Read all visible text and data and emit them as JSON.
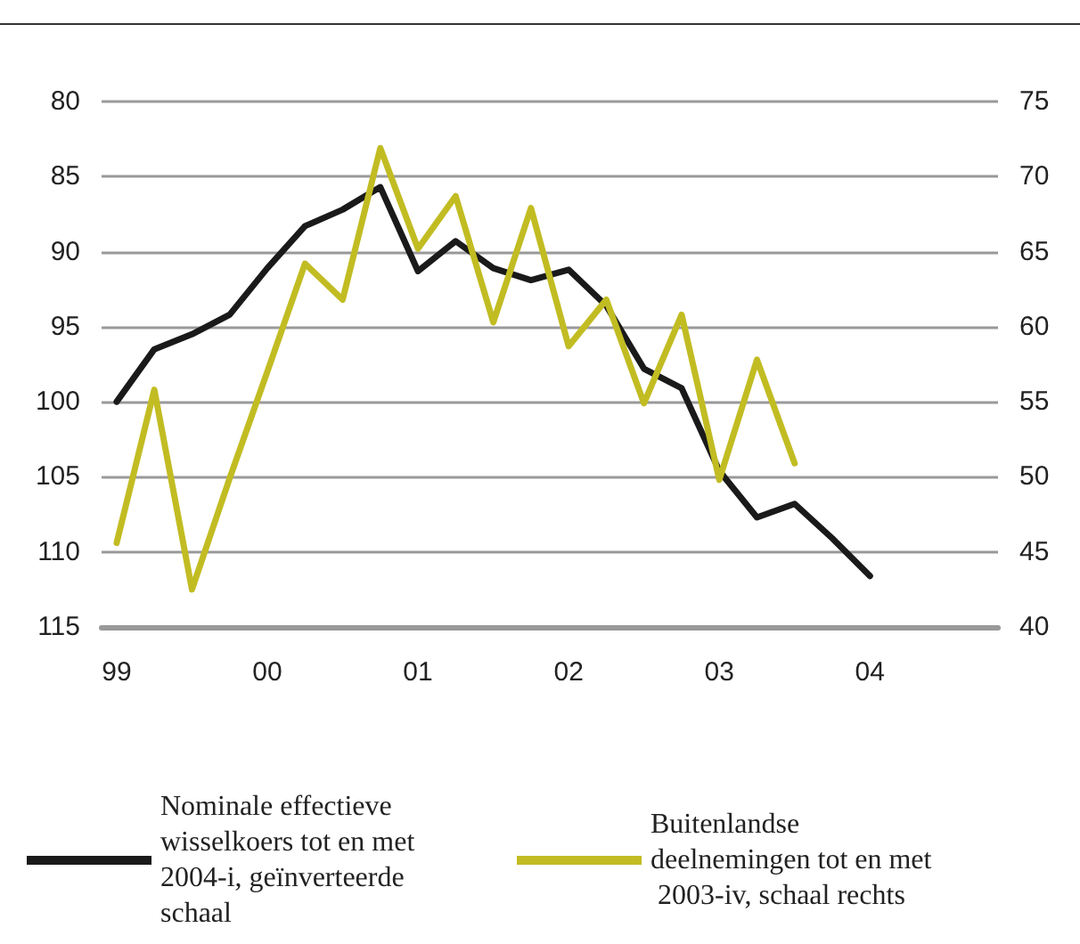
{
  "chart_data": {
    "type": "line",
    "x": [
      1999,
      1999.25,
      1999.5,
      1999.75,
      2000,
      2000.25,
      2000.5,
      2000.75,
      2001,
      2001.25,
      2001.5,
      2001.75,
      2002,
      2002.25,
      2002.5,
      2002.75,
      2003,
      2003.25,
      2003.5,
      2003.75,
      2004
    ],
    "series": [
      {
        "name": "Nominale effectieve wisselkoers tot en met 2004-i, geïnverteerde schaal",
        "color": "#1a1a1a",
        "values": [
          100,
          96.5,
          95.5,
          94.2,
          91.1,
          88.3,
          87.2,
          85.7,
          91.3,
          89.3,
          91.1,
          91.9,
          91.2,
          93.6,
          97.8,
          99.1,
          104.6,
          107.7,
          106.8,
          109.1,
          111.6
        ]
      },
      {
        "name": "Buitenlandse deelnemingen tot en met 2003-iv, schaal rechts",
        "color": "#c2bc23",
        "axis": "y2",
        "values": [
          45.6,
          55.8,
          42.5,
          49.9,
          57,
          64.2,
          61.8,
          71.9,
          65.2,
          68.7,
          60.3,
          67.9,
          58.7,
          61.8,
          54.9,
          60.8,
          49.8,
          57.8,
          50.9,
          null,
          null
        ]
      }
    ],
    "xlim": [
      1998.9,
      2004.85
    ],
    "xticks": [
      {
        "value": 1999,
        "label": "99"
      },
      {
        "value": 2000,
        "label": "00"
      },
      {
        "value": 2001,
        "label": "01"
      },
      {
        "value": 2002,
        "label": "02"
      },
      {
        "value": 2003,
        "label": "03"
      },
      {
        "value": 2004,
        "label": "04"
      }
    ],
    "ylim": [
      115,
      80
    ],
    "yticks": [
      80,
      85,
      90,
      95,
      100,
      105,
      110,
      115
    ],
    "y2lim": [
      40,
      75
    ],
    "y2ticks": [
      40,
      45,
      50,
      55,
      60,
      65,
      70,
      75
    ],
    "grid": "y",
    "legend": "bottom",
    "marker": "none",
    "line_style": "solid"
  }
}
